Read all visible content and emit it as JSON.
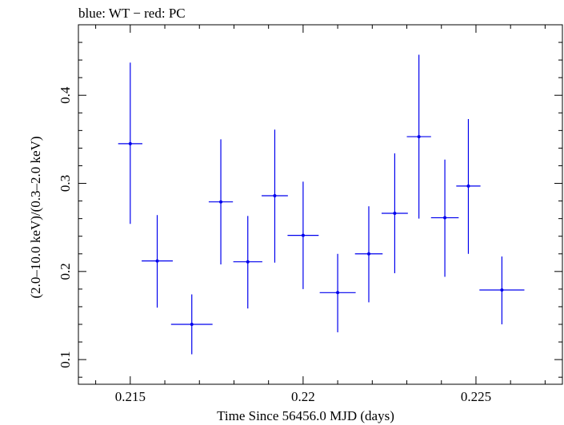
{
  "chart_data": {
    "type": "scatter",
    "title": "blue: WT − red: PC",
    "xlabel": "Time Since 56456.0 MJD (days)",
    "ylabel": "(2.0–10.0 keV)/(0.3–2.0 keV)",
    "xlim": [
      0.2135,
      0.2275
    ],
    "ylim": [
      0.072,
      0.48
    ],
    "x_ticks": [
      0.215,
      0.22,
      0.225
    ],
    "x_tick_labels": [
      "0.215",
      "0.22",
      "0.225"
    ],
    "y_ticks": [
      0.1,
      0.2,
      0.3,
      0.4
    ],
    "y_tick_labels": [
      "0.1",
      "0.2",
      "0.3",
      "0.4"
    ],
    "grid": false,
    "series": [
      {
        "color": "#0000ee",
        "points": [
          {
            "x": 0.215,
            "xerr": 0.00035,
            "y": 0.345,
            "y_lo": 0.254,
            "y_hi": 0.437
          },
          {
            "x": 0.21578,
            "xerr": 0.00045,
            "y": 0.212,
            "y_lo": 0.159,
            "y_hi": 0.264
          },
          {
            "x": 0.21678,
            "xerr": 0.0006,
            "y": 0.14,
            "y_lo": 0.106,
            "y_hi": 0.174
          },
          {
            "x": 0.21762,
            "xerr": 0.00035,
            "y": 0.279,
            "y_lo": 0.208,
            "y_hi": 0.35
          },
          {
            "x": 0.2184,
            "xerr": 0.00042,
            "y": 0.211,
            "y_lo": 0.158,
            "y_hi": 0.263
          },
          {
            "x": 0.21918,
            "xerr": 0.00038,
            "y": 0.286,
            "y_lo": 0.21,
            "y_hi": 0.361
          },
          {
            "x": 0.22,
            "xerr": 0.00045,
            "y": 0.241,
            "y_lo": 0.18,
            "y_hi": 0.302
          },
          {
            "x": 0.221,
            "xerr": 0.00052,
            "y": 0.176,
            "y_lo": 0.131,
            "y_hi": 0.22
          },
          {
            "x": 0.2219,
            "xerr": 0.0004,
            "y": 0.22,
            "y_lo": 0.165,
            "y_hi": 0.274
          },
          {
            "x": 0.22265,
            "xerr": 0.00038,
            "y": 0.266,
            "y_lo": 0.198,
            "y_hi": 0.334
          },
          {
            "x": 0.22335,
            "xerr": 0.00035,
            "y": 0.353,
            "y_lo": 0.26,
            "y_hi": 0.446
          },
          {
            "x": 0.2241,
            "xerr": 0.0004,
            "y": 0.261,
            "y_lo": 0.194,
            "y_hi": 0.327
          },
          {
            "x": 0.22478,
            "xerr": 0.00035,
            "y": 0.297,
            "y_lo": 0.22,
            "y_hi": 0.373
          },
          {
            "x": 0.22575,
            "xerr": 0.00065,
            "y": 0.179,
            "y_lo": 0.14,
            "y_hi": 0.217
          }
        ]
      }
    ]
  }
}
